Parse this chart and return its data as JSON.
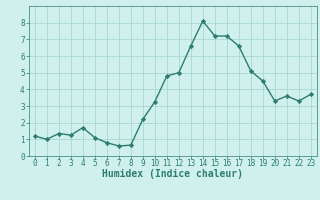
{
  "x": [
    0,
    1,
    2,
    3,
    4,
    5,
    6,
    7,
    8,
    9,
    10,
    11,
    12,
    13,
    14,
    15,
    16,
    17,
    18,
    19,
    20,
    21,
    22,
    23
  ],
  "y": [
    1.2,
    1.0,
    1.35,
    1.25,
    1.7,
    1.1,
    0.8,
    0.6,
    0.65,
    2.2,
    3.25,
    4.8,
    5.0,
    6.6,
    8.1,
    7.2,
    7.2,
    6.6,
    5.1,
    4.5,
    3.3,
    3.6,
    3.3,
    3.7
  ],
  "line_color": "#2d7d72",
  "marker": "D",
  "markersize": 2.2,
  "linewidth": 1.0,
  "bg_color": "#cff0ec",
  "grid_color": "#a8d8d0",
  "xlabel": "Humidex (Indice chaleur)",
  "tick_fontsize": 5.5,
  "xlabel_fontsize": 7.0,
  "xlim": [
    -0.5,
    23.5
  ],
  "ylim": [
    0,
    9
  ],
  "yticks": [
    0,
    1,
    2,
    3,
    4,
    5,
    6,
    7,
    8
  ],
  "xticks": [
    0,
    1,
    2,
    3,
    4,
    5,
    6,
    7,
    8,
    9,
    10,
    11,
    12,
    13,
    14,
    15,
    16,
    17,
    18,
    19,
    20,
    21,
    22,
    23
  ]
}
